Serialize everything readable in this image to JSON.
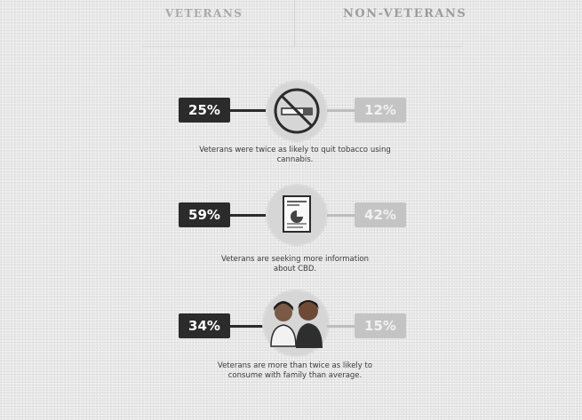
{
  "header": {
    "left_label": "VETERANS",
    "right_label": "NON-VETERANS"
  },
  "stats": [
    {
      "veterans": "25%",
      "non_veterans": "12%",
      "icon": "no-smoking-icon",
      "caption_line1": "Veterans were twice as likely to quit tobacco using",
      "caption_line2": "cannabis."
    },
    {
      "veterans": "59%",
      "non_veterans": "42%",
      "icon": "document-report-icon",
      "caption_line1": "Veterans are seeking more information",
      "caption_line2": "about CBD."
    },
    {
      "veterans": "34%",
      "non_veterans": "15%",
      "icon": "family-people-icon",
      "caption_line1": "Veterans are more than twice as likely to",
      "caption_line2": "consume with family than average."
    }
  ]
}
